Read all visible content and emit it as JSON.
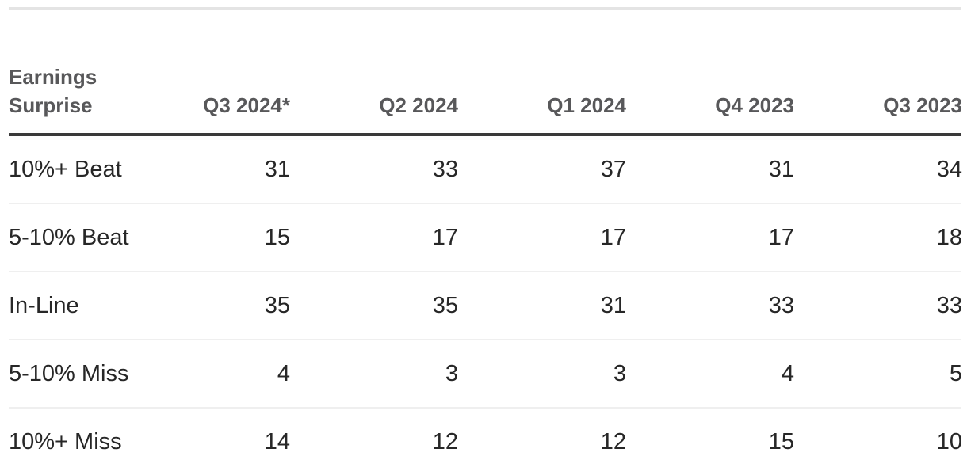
{
  "colors": {
    "background": "#ffffff",
    "top_rule": "#e4e4e4",
    "header_text": "#58585a",
    "header_rule": "#3a3a3a",
    "row_text": "#272727",
    "row_divider": "#efefef"
  },
  "chart_data": {
    "type": "table",
    "corner_header": "Earnings Surprise",
    "columns": [
      "Q3 2024*",
      "Q2 2024",
      "Q1 2024",
      "Q4 2023",
      "Q3 2023"
    ],
    "rows": [
      {
        "label": "10%+ Beat",
        "values": [
          31,
          33,
          37,
          31,
          34
        ]
      },
      {
        "label": "5-10% Beat",
        "values": [
          15,
          17,
          17,
          17,
          18
        ]
      },
      {
        "label": "In-Line",
        "values": [
          35,
          35,
          31,
          33,
          33
        ]
      },
      {
        "label": "5-10% Miss",
        "values": [
          4,
          3,
          3,
          4,
          5
        ]
      },
      {
        "label": "10%+ Miss",
        "values": [
          14,
          12,
          12,
          15,
          10
        ]
      }
    ]
  }
}
